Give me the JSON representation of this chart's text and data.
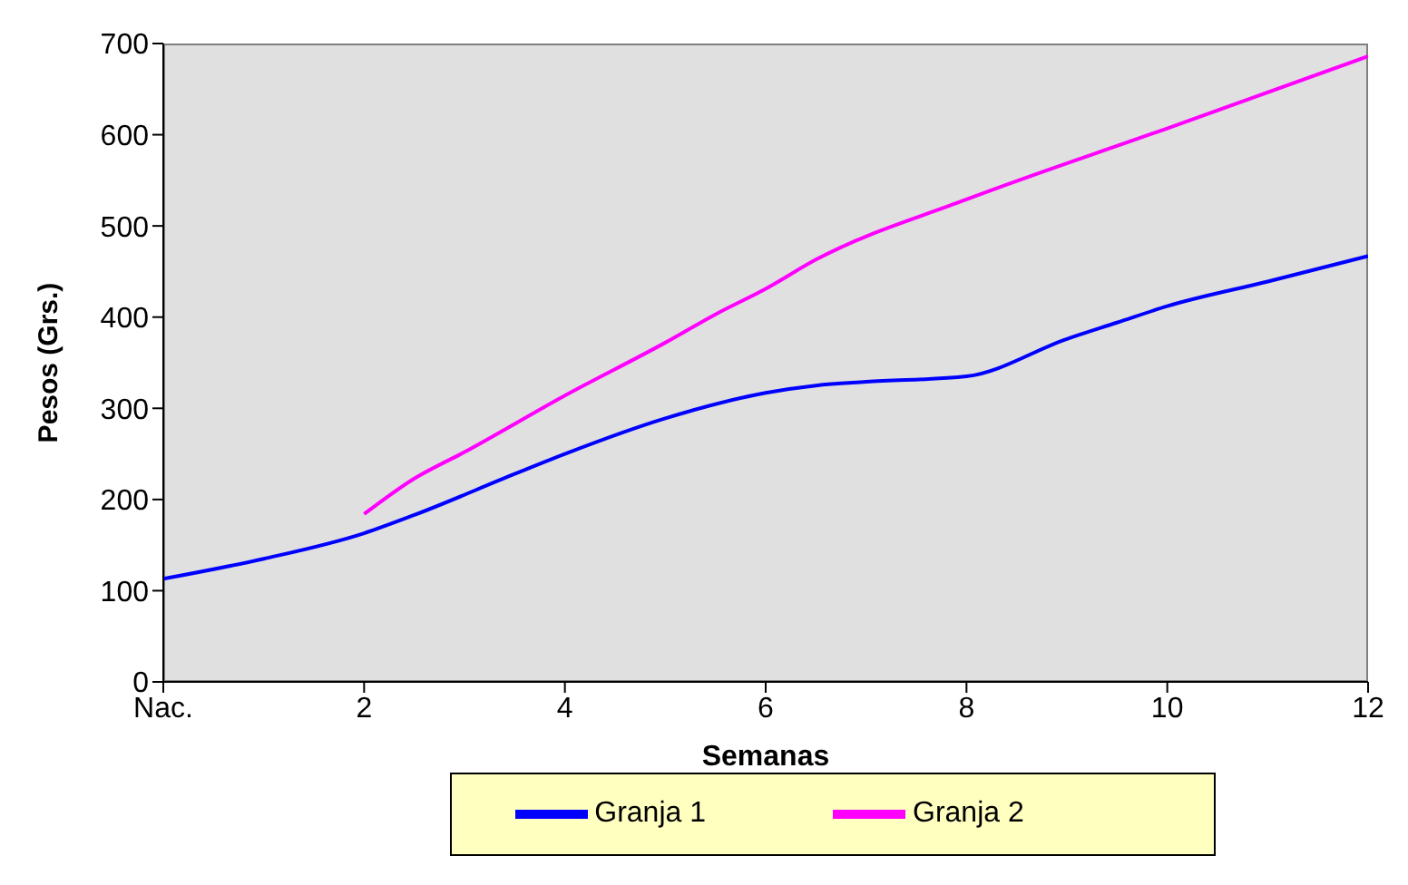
{
  "chart_data": {
    "type": "line",
    "xlabel": "Semanas",
    "ylabel": "Pesos (Grs.)",
    "xlim": [
      0,
      12
    ],
    "xticks": [
      {
        "value": 0,
        "label": "Nac."
      },
      2,
      4,
      6,
      8,
      10,
      12
    ],
    "ylim": [
      0,
      700
    ],
    "yticks": [
      0,
      100,
      200,
      300,
      400,
      500,
      600,
      700
    ],
    "grid": false,
    "legend": "bottom",
    "marker": "none",
    "line_style": "solid",
    "series": [
      {
        "name": "Granja 1",
        "color": "#0000ff",
        "x": [
          0,
          1,
          2,
          2.5,
          3.5,
          4,
          5,
          6,
          6.5,
          7,
          8,
          9,
          9.5,
          10,
          11,
          12
        ],
        "values": [
          113,
          135,
          163,
          183,
          228,
          250,
          289,
          317,
          325,
          329,
          335,
          376,
          394,
          412,
          439,
          467
        ]
      },
      {
        "name": "Granja 2",
        "color": "#ff00ff",
        "x": [
          2,
          2.5,
          3,
          4,
          5,
          5.5,
          6,
          6.5,
          8,
          10,
          12
        ],
        "values": [
          184,
          223,
          252,
          314,
          372,
          403,
          431,
          463,
          529,
          607,
          686
        ]
      }
    ]
  }
}
